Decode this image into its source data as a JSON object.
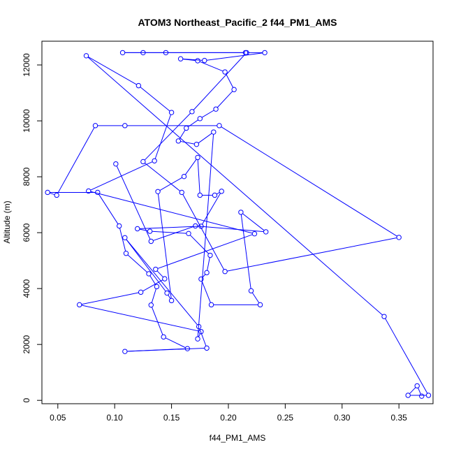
{
  "chart_data": {
    "type": "line",
    "title": "ATOM3 Northeast_Pacific_2 f44_PM1_AMS",
    "xlabel": "f44_PM1_AMS",
    "ylabel": "Altitude (m)",
    "xlim": [
      0.036,
      0.38
    ],
    "ylim": [
      -120,
      12850
    ],
    "x_ticks": [
      0.05,
      0.1,
      0.15,
      0.2,
      0.25,
      0.3,
      0.35
    ],
    "x_tick_labels": [
      "0.05",
      "0.10",
      "0.15",
      "0.20",
      "0.25",
      "0.30",
      "0.35"
    ],
    "y_ticks": [
      0,
      2000,
      4000,
      6000,
      8000,
      10000,
      12000
    ],
    "y_tick_labels": [
      "0",
      "2000",
      "4000",
      "6000",
      "8000",
      "10000",
      "12000"
    ],
    "grid": false,
    "legend": "none",
    "marker": "open-circle",
    "color": "#0000ff",
    "series": [
      {
        "x": [
          0.37,
          0.366,
          0.358,
          0.376,
          0.337,
          0.075,
          0.121,
          0.15,
          0.135,
          0.077,
          0.223,
          0.136,
          0.144,
          0.123,
          0.069,
          0.176,
          0.173,
          0.187,
          0.172,
          0.156,
          0.163,
          0.175,
          0.189,
          0.205,
          0.197,
          0.173,
          0.158,
          0.179,
          0.232,
          0.215,
          0.125,
          0.107,
          0.145,
          0.216,
          0.168,
          0.125,
          0.159,
          0.197,
          0.35,
          0.192,
          0.109,
          0.083,
          0.049,
          0.041,
          0.085,
          0.104,
          0.11,
          0.13,
          0.137,
          0.132,
          0.143,
          0.164,
          0.109,
          0.181,
          0.174,
          0.109,
          0.146,
          0.15,
          0.138,
          0.161,
          0.173,
          0.175,
          0.188,
          0.194,
          0.176,
          0.12,
          0.131,
          0.165,
          0.184,
          0.181,
          0.176,
          0.185,
          0.228,
          0.22,
          0.211,
          0.233,
          0.171,
          0.132,
          0.101
        ],
        "y": [
          150,
          520,
          180,
          180,
          3000,
          12330,
          11260,
          10300,
          8570,
          7490,
          5960,
          4690,
          4350,
          3870,
          3420,
          2460,
          2200,
          9600,
          9160,
          9280,
          9740,
          10080,
          10420,
          11120,
          11750,
          12150,
          12220,
          12160,
          12440,
          12440,
          12440,
          12440,
          12440,
          12440,
          10330,
          8540,
          7440,
          4610,
          5830,
          9830,
          9830,
          9830,
          7340,
          7440,
          7440,
          6240,
          5260,
          4530,
          4070,
          3410,
          2270,
          1850,
          1750,
          1870,
          2640,
          5820,
          3840,
          3570,
          7470,
          8010,
          8690,
          7340,
          7340,
          7480,
          6230,
          6140,
          6050,
          5970,
          5190,
          4570,
          4340,
          3420,
          3420,
          3920,
          6730,
          6030,
          6240,
          5690,
          8460
        ],
        "values_note": "",
        "name": ""
      }
    ]
  }
}
